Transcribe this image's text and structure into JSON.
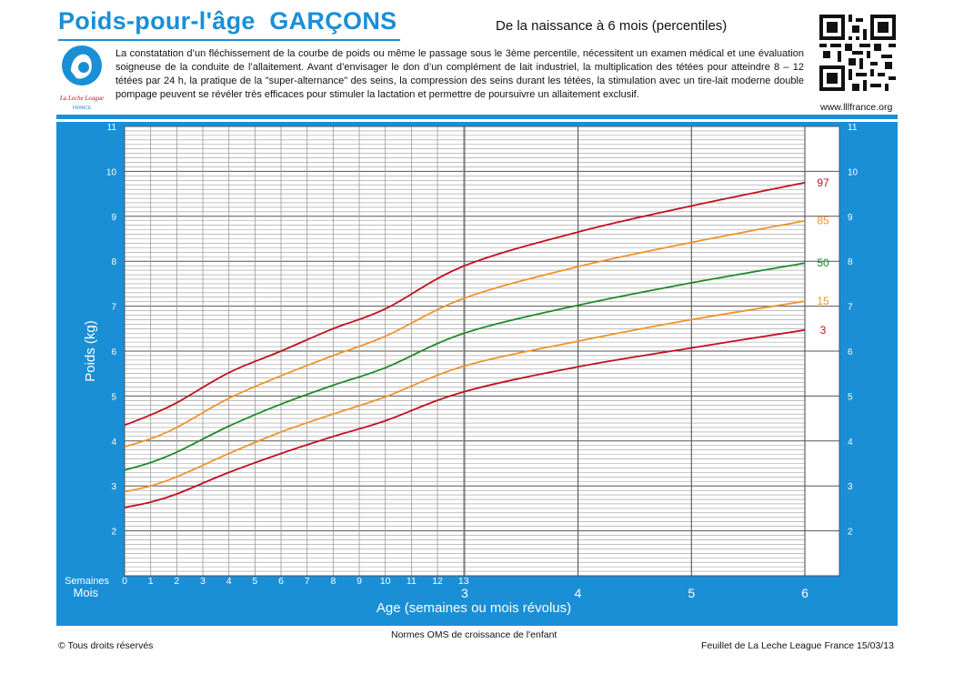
{
  "header": {
    "title": "Poids-pour-l'âge  GARÇONS",
    "subtitle": "De la naissance à 6 mois (percentiles)",
    "intro": "La constatation d’un fléchissement de la courbe de poids ou même le passage sous le 3ème percentile, nécessitent un examen médical et une  évaluation soigneuse de la conduite de l’allaitement. Avant d’envisager le don d’un complément de lait industriel, la multiplication des tétées pour atteindre 8 – 12 tétées par 24 h, la pratique de la \"super-alternance\" des seins, la compression des seins durant les tétées, la stimulation avec un tire-lait moderne double pompage peuvent se révéler très efficaces pour stimuler la lactation et permettre de poursuivre un allaitement exclusif.",
    "website": "www.lllfrance.org",
    "logo_text": "La Leche League",
    "logo_sub": "FRANCE"
  },
  "footer": {
    "center": "Normes OMS de croissance de l'enfant",
    "left": "© Tous droits réservés",
    "right": "Feuillet de La Leche League France 15/03/13"
  },
  "colors": {
    "brand": "#1a8fd6",
    "p3": "#c0121f",
    "p15": "#f0932b",
    "p50": "#1e8a2a",
    "p85": "#f0932b",
    "p97": "#c0121f"
  },
  "chart_data": {
    "type": "line",
    "title": "Poids-pour-l'âge  GARÇONS",
    "xlabel": "Age (semaines ou mois révolus)",
    "ylabel": "Poids (kg)",
    "ylim": [
      1,
      11
    ],
    "y_ticks": [
      "2",
      "3",
      "4",
      "5",
      "6",
      "7",
      "8",
      "9",
      "10",
      "11"
    ],
    "x_unit": "weeks",
    "xlim": [
      0,
      26.09
    ],
    "week_axis_label": "Semaines",
    "month_axis_label": "Mois",
    "week_ticks": [
      {
        "label": "0",
        "x": 0
      },
      {
        "label": "1",
        "x": 1
      },
      {
        "label": "2",
        "x": 2
      },
      {
        "label": "3",
        "x": 3
      },
      {
        "label": "4",
        "x": 4
      },
      {
        "label": "5",
        "x": 5
      },
      {
        "label": "6",
        "x": 6
      },
      {
        "label": "7",
        "x": 7
      },
      {
        "label": "8",
        "x": 8
      },
      {
        "label": "9",
        "x": 9
      },
      {
        "label": "10",
        "x": 10
      },
      {
        "label": "11",
        "x": 11
      },
      {
        "label": "12",
        "x": 12
      },
      {
        "label": "13",
        "x": 13
      }
    ],
    "month_ticks": [
      {
        "label": "3",
        "x": 13.04
      },
      {
        "label": "4",
        "x": 17.39
      },
      {
        "label": "5",
        "x": 21.74
      },
      {
        "label": "6",
        "x": 26.09
      }
    ],
    "grid": true,
    "series": [
      {
        "name": "97",
        "color_key": "p97",
        "points": [
          [
            0,
            4.35
          ],
          [
            1,
            4.58
          ],
          [
            2,
            4.85
          ],
          [
            4,
            5.52
          ],
          [
            6,
            6.0
          ],
          [
            8,
            6.5
          ],
          [
            10,
            6.94
          ],
          [
            13.04,
            7.9
          ],
          [
            17.39,
            8.65
          ],
          [
            21.74,
            9.23
          ],
          [
            26.09,
            9.75
          ]
        ]
      },
      {
        "name": "85",
        "color_key": "p85",
        "points": [
          [
            0,
            3.87
          ],
          [
            1,
            4.05
          ],
          [
            2,
            4.3
          ],
          [
            4,
            4.95
          ],
          [
            6,
            5.45
          ],
          [
            8,
            5.9
          ],
          [
            10,
            6.33
          ],
          [
            13.04,
            7.18
          ],
          [
            17.39,
            7.88
          ],
          [
            21.74,
            8.42
          ],
          [
            26.09,
            8.9
          ]
        ]
      },
      {
        "name": "50",
        "color_key": "p50",
        "points": [
          [
            0,
            3.35
          ],
          [
            1,
            3.52
          ],
          [
            2,
            3.75
          ],
          [
            4,
            4.33
          ],
          [
            6,
            4.82
          ],
          [
            8,
            5.24
          ],
          [
            10,
            5.63
          ],
          [
            13.04,
            6.4
          ],
          [
            17.39,
            7.02
          ],
          [
            21.74,
            7.52
          ],
          [
            26.09,
            7.96
          ]
        ]
      },
      {
        "name": "15",
        "color_key": "p15",
        "points": [
          [
            0,
            2.87
          ],
          [
            1,
            3.0
          ],
          [
            2,
            3.2
          ],
          [
            4,
            3.72
          ],
          [
            6,
            4.2
          ],
          [
            8,
            4.6
          ],
          [
            10,
            4.98
          ],
          [
            13.04,
            5.67
          ],
          [
            17.39,
            6.22
          ],
          [
            21.74,
            6.7
          ],
          [
            26.09,
            7.11
          ]
        ]
      },
      {
        "name": "3",
        "color_key": "p3",
        "points": [
          [
            0,
            2.52
          ],
          [
            1,
            2.64
          ],
          [
            2,
            2.82
          ],
          [
            4,
            3.3
          ],
          [
            6,
            3.72
          ],
          [
            8,
            4.1
          ],
          [
            10,
            4.45
          ],
          [
            13.04,
            5.1
          ],
          [
            17.39,
            5.65
          ],
          [
            21.74,
            6.07
          ],
          [
            26.09,
            6.47
          ]
        ]
      }
    ]
  }
}
